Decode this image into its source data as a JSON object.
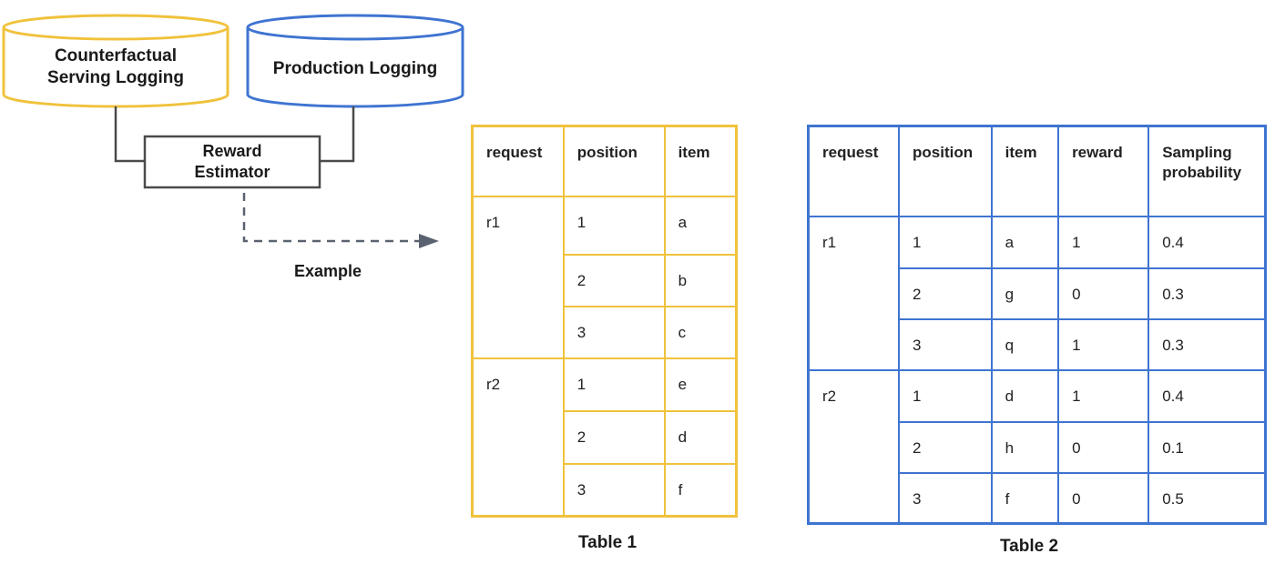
{
  "colors": {
    "yellow": "#F0C23C",
    "blue": "#3F74D1",
    "connector": "#4a4a4a",
    "arrow": "#5a6270"
  },
  "diagram": {
    "counterfactual_db_line1": "Counterfactual",
    "counterfactual_db_line2": "Serving Logging",
    "production_db": "Production Logging",
    "reward_estimator_line1": "Reward",
    "reward_estimator_line2": "Estimator",
    "example_label": "Example"
  },
  "table1": {
    "caption": "Table 1",
    "headers": [
      "request",
      "position",
      "item"
    ],
    "groups": [
      {
        "request": "r1",
        "rows": [
          [
            "1",
            "a"
          ],
          [
            "2",
            "b"
          ],
          [
            "3",
            "c"
          ]
        ]
      },
      {
        "request": "r2",
        "rows": [
          [
            "1",
            "e"
          ],
          [
            "2",
            "d"
          ],
          [
            "3",
            "f"
          ]
        ]
      }
    ]
  },
  "table2": {
    "caption": "Table 2",
    "headers": [
      "request",
      "position",
      "item",
      "reward",
      "Sampling probability"
    ],
    "groups": [
      {
        "request": "r1",
        "rows": [
          [
            "1",
            "a",
            "1",
            "0.4"
          ],
          [
            "2",
            "g",
            "0",
            "0.3"
          ],
          [
            "3",
            "q",
            "1",
            "0.3"
          ]
        ]
      },
      {
        "request": "r2",
        "rows": [
          [
            "1",
            "d",
            "1",
            "0.4"
          ],
          [
            "2",
            "h",
            "0",
            "0.1"
          ],
          [
            "3",
            "f",
            "0",
            "0.5"
          ]
        ]
      }
    ]
  }
}
